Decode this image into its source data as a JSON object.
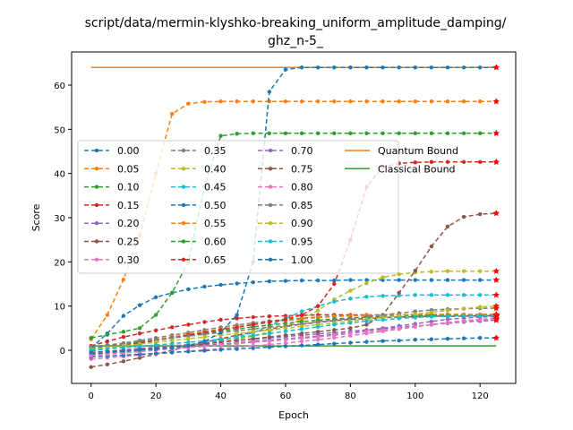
{
  "chart_data": {
    "type": "line",
    "title_line1": "script/data/mermin-klyshko-breaking_uniform_amplitude_damping/",
    "title_line2": "ghz_n-5_",
    "xlabel": "Epoch",
    "ylabel": "Score",
    "xlim": [
      -6,
      131
    ],
    "ylim": [
      -7.5,
      67.5
    ],
    "xticks": [
      0,
      20,
      40,
      60,
      80,
      100,
      120
    ],
    "yticks": [
      0,
      10,
      20,
      30,
      40,
      50,
      60
    ],
    "x": [
      0,
      5,
      10,
      15,
      20,
      25,
      30,
      35,
      40,
      45,
      50,
      55,
      60,
      65,
      70,
      75,
      80,
      85,
      90,
      95,
      100,
      105,
      110,
      115,
      120,
      125
    ],
    "legend_position": "center-left",
    "grid": false,
    "series": [
      {
        "name": "0.00",
        "color": "#1f77b4",
        "values": [
          0.5,
          3.8,
          7.8,
          10.2,
          12.0,
          13.0,
          13.8,
          14.4,
          14.8,
          15.1,
          15.4,
          15.6,
          15.7,
          15.8,
          15.8,
          15.8,
          15.9,
          15.9,
          15.9,
          15.9,
          15.9,
          15.9,
          15.9,
          15.9,
          15.9,
          15.9
        ]
      },
      {
        "name": "0.05",
        "color": "#ff7f0e",
        "values": [
          2.5,
          8.0,
          16.0,
          26.0,
          40.0,
          53.5,
          55.8,
          56.2,
          56.3,
          56.3,
          56.3,
          56.3,
          56.3,
          56.3,
          56.3,
          56.3,
          56.3,
          56.3,
          56.3,
          56.3,
          56.3,
          56.3,
          56.3,
          56.3,
          56.3,
          56.3
        ]
      },
      {
        "name": "0.10",
        "color": "#2ca02c",
        "values": [
          2.8,
          3.5,
          4.2,
          5.0,
          8.0,
          13.0,
          20.0,
          37.0,
          48.5,
          49.0,
          49.1,
          49.1,
          49.1,
          49.1,
          49.1,
          49.1,
          49.1,
          49.1,
          49.1,
          49.1,
          49.1,
          49.1,
          49.1,
          49.1,
          49.1,
          49.1
        ]
      },
      {
        "name": "0.15",
        "color": "#d62728",
        "values": [
          1.0,
          2.0,
          3.0,
          3.8,
          4.5,
          5.2,
          5.8,
          6.4,
          6.9,
          7.2,
          7.5,
          7.7,
          7.8,
          7.9,
          8.0,
          8.0,
          8.0,
          8.0,
          8.0,
          8.0,
          8.0,
          8.0,
          8.0,
          8.0,
          8.0,
          8.0
        ]
      },
      {
        "name": "0.20",
        "color": "#9467bd",
        "values": [
          -1.0,
          -0.7,
          -0.4,
          -0.1,
          0.2,
          0.5,
          0.8,
          1.1,
          1.4,
          1.7,
          2.0,
          2.3,
          2.6,
          2.9,
          3.2,
          3.6,
          4.0,
          4.5,
          5.0,
          5.5,
          6.0,
          6.5,
          7.0,
          7.3,
          7.5,
          7.6
        ]
      },
      {
        "name": "0.25",
        "color": "#8c564b",
        "values": [
          -3.8,
          -3.2,
          -2.5,
          -1.7,
          -0.9,
          0.0,
          0.9,
          1.8,
          2.6,
          3.4,
          4.1,
          4.8,
          5.4,
          5.9,
          6.3,
          6.7,
          7.0,
          7.2,
          7.4,
          7.5,
          7.6,
          7.7,
          7.7,
          7.7,
          7.8,
          7.8
        ]
      },
      {
        "name": "0.30",
        "color": "#e377c2",
        "values": [
          -2.0,
          -1.7,
          -1.4,
          -1.1,
          -0.8,
          -0.5,
          -0.2,
          0.1,
          0.4,
          0.7,
          1.0,
          1.3,
          1.6,
          2.0,
          2.4,
          2.8,
          3.3,
          3.8,
          4.3,
          4.8,
          5.3,
          5.8,
          6.3,
          6.7,
          7.0,
          7.2
        ]
      },
      {
        "name": "0.35",
        "color": "#7f7f7f",
        "values": [
          0.5,
          1.0,
          1.6,
          2.2,
          2.8,
          3.4,
          4.0,
          4.6,
          5.2,
          5.7,
          6.2,
          6.6,
          7.0,
          7.3,
          7.5,
          7.7,
          7.8,
          7.9,
          8.0,
          8.0,
          8.1,
          8.1,
          8.1,
          8.1,
          8.1,
          8.1
        ]
      },
      {
        "name": "0.40",
        "color": "#bcbd22",
        "values": [
          -0.5,
          -0.3,
          0.0,
          0.3,
          0.6,
          0.9,
          1.2,
          1.6,
          2.0,
          2.5,
          3.2,
          4.2,
          5.5,
          7.0,
          9.0,
          11.5,
          13.5,
          15.2,
          16.5,
          17.2,
          17.6,
          17.8,
          17.9,
          17.9,
          17.9,
          17.9
        ]
      },
      {
        "name": "0.45",
        "color": "#17becf",
        "values": [
          -0.8,
          -0.6,
          -0.3,
          0.0,
          0.4,
          0.8,
          1.2,
          1.7,
          2.3,
          3.0,
          4.0,
          5.5,
          7.2,
          8.8,
          10.0,
          11.0,
          11.7,
          12.1,
          12.3,
          12.4,
          12.5,
          12.5,
          12.5,
          12.5,
          12.5,
          12.5
        ]
      },
      {
        "name": "0.50",
        "color": "#1f77b4",
        "values": [
          -1.5,
          -1.3,
          -1.1,
          -0.9,
          -0.7,
          -0.5,
          -0.3,
          -0.1,
          0.1,
          0.3,
          0.5,
          0.7,
          0.9,
          1.1,
          1.3,
          1.5,
          1.7,
          1.9,
          2.1,
          2.2,
          2.4,
          2.5,
          2.6,
          2.7,
          2.8,
          2.8
        ]
      },
      {
        "name": "0.55",
        "color": "#ff7f0e",
        "values": [
          0.0,
          0.6,
          1.2,
          1.8,
          2.4,
          3.0,
          3.6,
          4.2,
          4.8,
          5.3,
          5.8,
          6.3,
          6.7,
          7.1,
          7.4,
          7.6,
          7.8,
          7.9,
          8.0,
          8.1,
          8.1,
          8.1,
          8.1,
          8.1,
          8.1,
          8.1
        ]
      },
      {
        "name": "0.60",
        "color": "#2ca02c",
        "values": [
          0.3,
          0.8,
          1.3,
          1.8,
          2.3,
          2.8,
          3.3,
          3.8,
          4.3,
          4.8,
          5.3,
          5.7,
          6.1,
          6.5,
          6.8,
          7.1,
          7.3,
          7.5,
          7.6,
          7.7,
          7.8,
          7.8,
          7.8,
          7.8,
          7.8,
          7.8
        ]
      },
      {
        "name": "0.65",
        "color": "#d62728",
        "values": [
          -0.2,
          0.4,
          1.0,
          1.6,
          2.2,
          2.8,
          3.4,
          4.0,
          4.6,
          5.2,
          5.8,
          6.4,
          7.0,
          8.0,
          10.0,
          15.0,
          25.0,
          37.0,
          41.5,
          42.3,
          42.5,
          42.6,
          42.6,
          42.6,
          42.6,
          42.6
        ]
      },
      {
        "name": "0.70",
        "color": "#9467bd",
        "values": [
          -0.5,
          -0.2,
          0.1,
          0.4,
          0.7,
          1.0,
          1.3,
          1.6,
          1.9,
          2.2,
          2.5,
          2.8,
          3.1,
          3.4,
          3.7,
          4.0,
          4.3,
          4.6,
          4.9,
          5.2,
          5.5,
          5.8,
          6.1,
          6.4,
          6.6,
          6.8
        ]
      },
      {
        "name": "0.75",
        "color": "#8c564b",
        "values": [
          -0.8,
          -0.5,
          -0.2,
          0.1,
          0.4,
          0.7,
          1.0,
          1.4,
          1.8,
          2.2,
          2.6,
          3.0,
          3.4,
          3.8,
          4.2,
          4.6,
          5.0,
          5.8,
          8.0,
          13.0,
          18.0,
          23.5,
          28.0,
          30.2,
          30.8,
          31.0
        ]
      },
      {
        "name": "0.80",
        "color": "#e377c2",
        "values": [
          -1.2,
          -0.9,
          -0.6,
          -0.3,
          0.0,
          0.3,
          0.6,
          0.9,
          1.2,
          1.5,
          1.8,
          2.1,
          2.4,
          2.7,
          3.0,
          3.4,
          3.8,
          4.2,
          4.6,
          5.0,
          5.4,
          5.8,
          6.2,
          6.6,
          6.9,
          7.1
        ]
      },
      {
        "name": "0.85",
        "color": "#7f7f7f",
        "values": [
          0.8,
          1.2,
          1.6,
          2.0,
          2.4,
          2.8,
          3.2,
          3.6,
          4.0,
          4.4,
          4.8,
          5.2,
          5.6,
          6.0,
          6.4,
          6.8,
          7.2,
          7.6,
          8.0,
          8.4,
          8.8,
          9.1,
          9.3,
          9.4,
          9.5,
          9.5
        ]
      },
      {
        "name": "0.90",
        "color": "#bcbd22",
        "values": [
          0.2,
          0.6,
          1.0,
          1.4,
          1.8,
          2.2,
          2.6,
          3.0,
          3.4,
          3.8,
          4.2,
          4.6,
          5.0,
          5.4,
          5.8,
          6.2,
          6.6,
          7.0,
          7.4,
          7.8,
          8.2,
          8.6,
          9.0,
          9.4,
          9.8,
          10.0
        ]
      },
      {
        "name": "0.95",
        "color": "#17becf",
        "values": [
          0.0,
          0.3,
          0.6,
          0.9,
          1.2,
          1.5,
          1.8,
          2.1,
          2.5,
          2.9,
          3.3,
          3.8,
          4.3,
          4.8,
          5.3,
          5.8,
          6.2,
          6.6,
          6.9,
          7.2,
          7.4,
          7.6,
          7.7,
          7.8,
          7.8,
          7.8
        ]
      },
      {
        "name": "1.00",
        "color": "#1f77b4",
        "values": [
          -0.5,
          -0.3,
          -0.1,
          0.1,
          0.3,
          0.5,
          1.0,
          2.0,
          4.0,
          8.0,
          20.0,
          58.5,
          63.5,
          64.0,
          64.0,
          64.0,
          64.0,
          64.0,
          64.0,
          64.0,
          64.0,
          64.0,
          64.0,
          64.0,
          64.0,
          64.0
        ]
      }
    ],
    "bounds": [
      {
        "name": "Quantum Bound",
        "color": "#ff7f0e",
        "value": 64
      },
      {
        "name": "Classical Bound",
        "color": "#2ca02c",
        "value": 1
      }
    ],
    "star_color": "#ff0000"
  }
}
